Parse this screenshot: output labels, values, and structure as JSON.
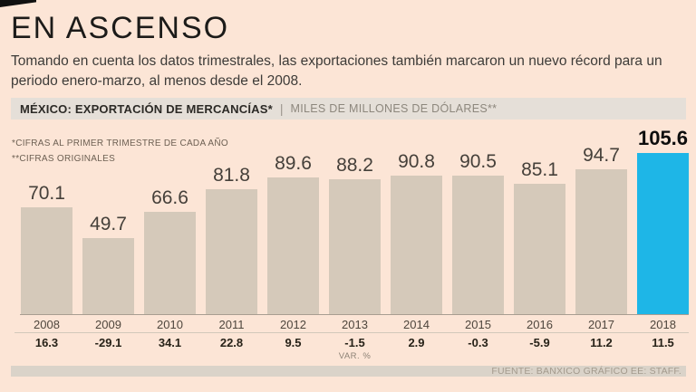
{
  "page": {
    "title": "EN ASCENSO",
    "subtitle": "Tomando en cuenta los datos trimestrales, las exportaciones también marcaron un nuevo récord para un periodo enero-marzo, al menos desde el 2008.",
    "kicker": {
      "label": "MÉXICO: EXPORTACIÓN DE MERCANCÍAS*",
      "separator": "|",
      "units": "MILES DE MILLONES DE DÓLARES**"
    },
    "footnotes": [
      "*CIFRAS AL PRIMER TRIMESTRE DE CADA AÑO",
      "**CIFRAS ORIGINALES"
    ],
    "source": "FUENTE: BANXICO GRÁFICO EE: STAFF."
  },
  "chart_data": {
    "type": "bar",
    "title": "MÉXICO: EXPORTACIÓN DE MERCANCÍAS*",
    "units_label": "MILES DE MILLONES DE DÓLARES**",
    "categories": [
      "2008",
      "2009",
      "2010",
      "2011",
      "2012",
      "2013",
      "2014",
      "2015",
      "2016",
      "2017",
      "2018"
    ],
    "values": [
      70.1,
      49.7,
      66.6,
      81.8,
      89.6,
      88.2,
      90.8,
      90.5,
      85.1,
      94.7,
      105.6
    ],
    "var_pct": [
      16.3,
      -29.1,
      34.1,
      22.8,
      9.5,
      -1.5,
      2.9,
      -0.3,
      -5.9,
      11.2,
      11.5
    ],
    "var_axis_label": "VAR. %",
    "highlight_index": 10,
    "ylim": [
      0,
      110
    ],
    "grid": false,
    "legend": "none",
    "colors": {
      "bar": "#d5c9ba",
      "highlight_bar": "#1eb6e7",
      "background": "#fce5d6"
    }
  }
}
